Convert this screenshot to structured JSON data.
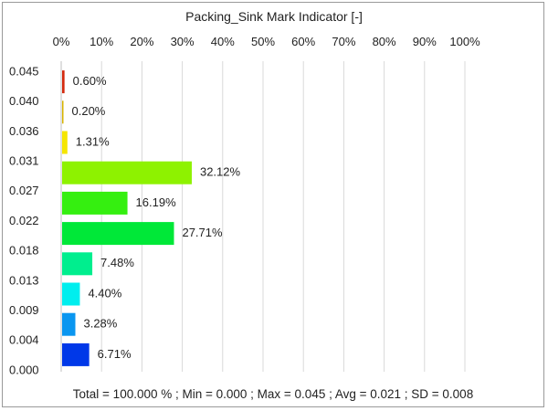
{
  "chart_data": {
    "type": "bar",
    "orientation": "horizontal",
    "title": "Packing_Sink Mark Indicator [-]",
    "x_ticks": [
      "0%",
      "10%",
      "20%",
      "30%",
      "40%",
      "50%",
      "60%",
      "70%",
      "80%",
      "90%",
      "100%"
    ],
    "xlim": [
      0,
      100
    ],
    "x_axis_position": "top",
    "grid": true,
    "y_ticks": [
      "0.045",
      "0.040",
      "0.036",
      "0.031",
      "0.027",
      "0.022",
      "0.018",
      "0.013",
      "0.009",
      "0.004",
      "0.000"
    ],
    "bars": [
      {
        "value": 0.6,
        "label": "0.60%",
        "color": "#d42a0f"
      },
      {
        "value": 0.2,
        "label": "0.20%",
        "color": "#d8b400"
      },
      {
        "value": 1.31,
        "label": "1.31%",
        "color": "#f5e600"
      },
      {
        "value": 32.12,
        "label": "32.12%",
        "color": "#8ef200"
      },
      {
        "value": 16.19,
        "label": "16.19%",
        "color": "#35ef10"
      },
      {
        "value": 27.71,
        "label": "27.71%",
        "color": "#00e838"
      },
      {
        "value": 7.48,
        "label": "7.48%",
        "color": "#00ee8e"
      },
      {
        "value": 4.4,
        "label": "4.40%",
        "color": "#00eeee"
      },
      {
        "value": 3.28,
        "label": "3.28%",
        "color": "#0a96f0"
      },
      {
        "value": 6.71,
        "label": "6.71%",
        "color": "#0038e8"
      }
    ],
    "footer": "Total = 100.000 % ; Min = 0.000 ;    Max = 0.045 ;    Avg = 0.021 ;    SD = 0.008"
  }
}
